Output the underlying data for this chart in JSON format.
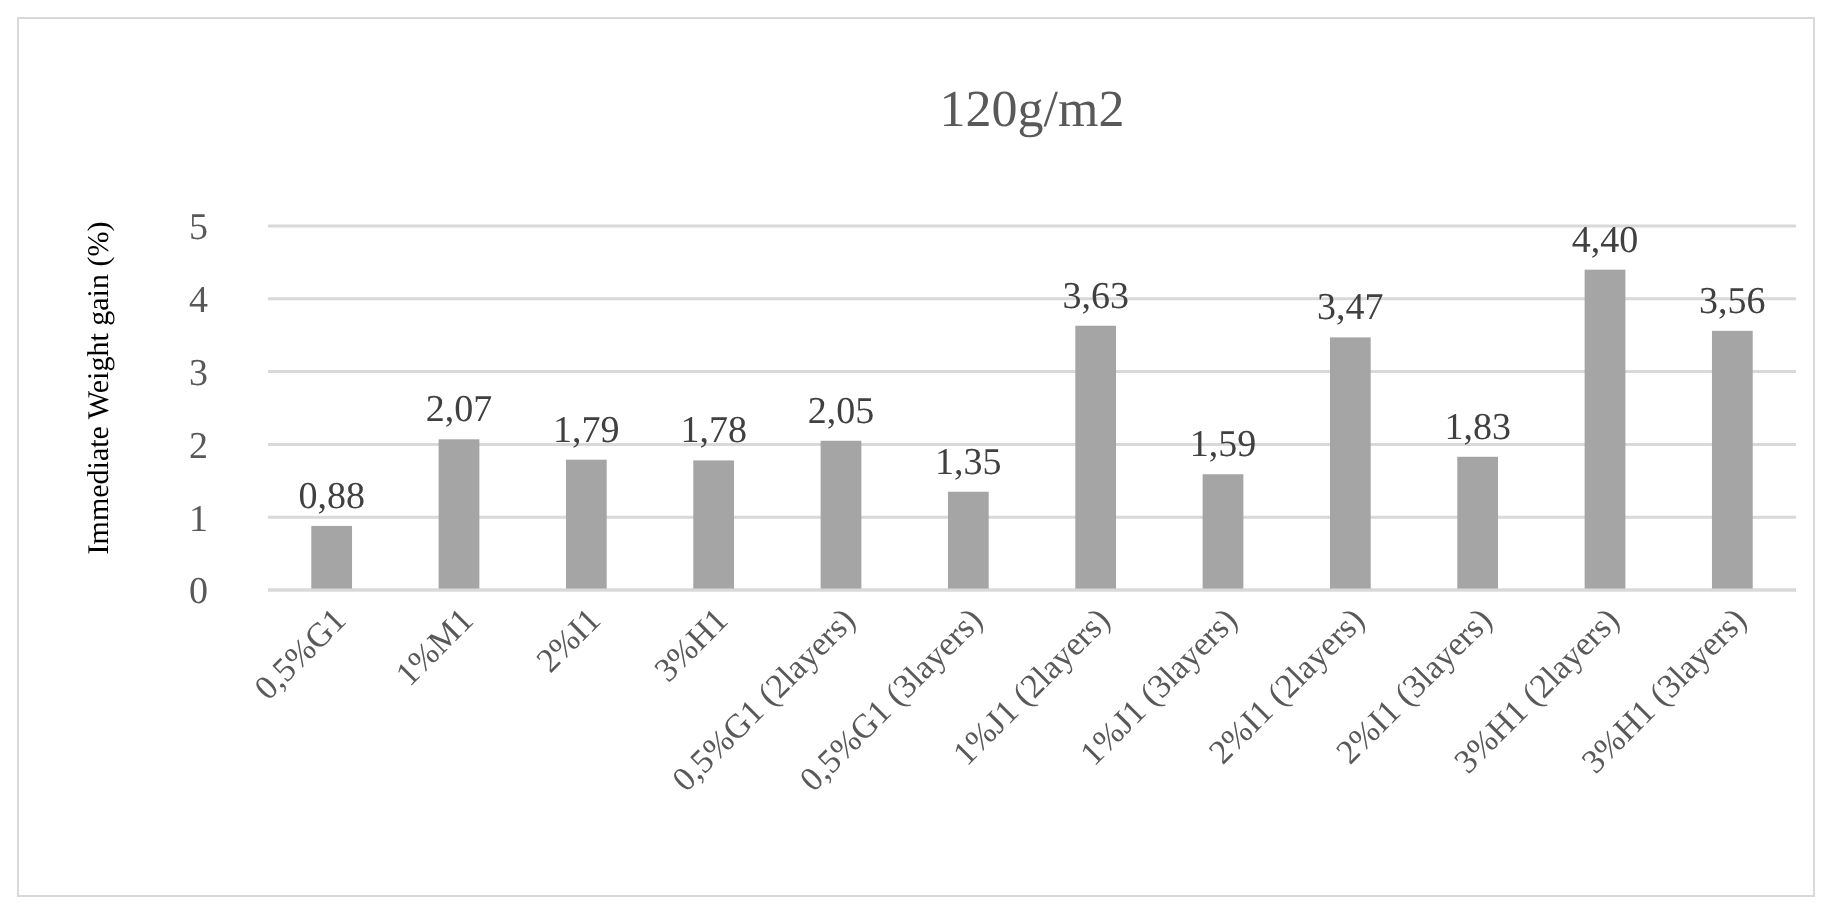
{
  "chart_data": {
    "type": "bar",
    "title": "120g/m2",
    "ylabel": "Immediate Weight gain (%)",
    "categories": [
      "0,5%G1",
      "1%M1",
      "2%I1",
      "3%H1",
      "0,5%G1 (2layers)",
      "0,5%G1 (3layers)",
      "1%J1 (2layers)",
      "1%J1 (3layers)",
      "2%I1 (2layers)",
      "2%I1 (3layers)",
      "3%H1 (2layers)",
      "3%H1 (3layers)"
    ],
    "values": [
      0.88,
      2.07,
      1.79,
      1.78,
      2.05,
      1.35,
      3.63,
      1.59,
      3.47,
      1.83,
      4.4,
      3.56
    ],
    "value_labels": [
      "0,88",
      "2,07",
      "1,79",
      "1,78",
      "2,05",
      "1,35",
      "3,63",
      "1,59",
      "3,47",
      "1,83",
      "4,40",
      "3,56"
    ],
    "color": "#a5a5a5",
    "ylim": [
      0,
      5
    ],
    "yticks": [
      0,
      1,
      2,
      3,
      4,
      5
    ],
    "grid": "y"
  }
}
